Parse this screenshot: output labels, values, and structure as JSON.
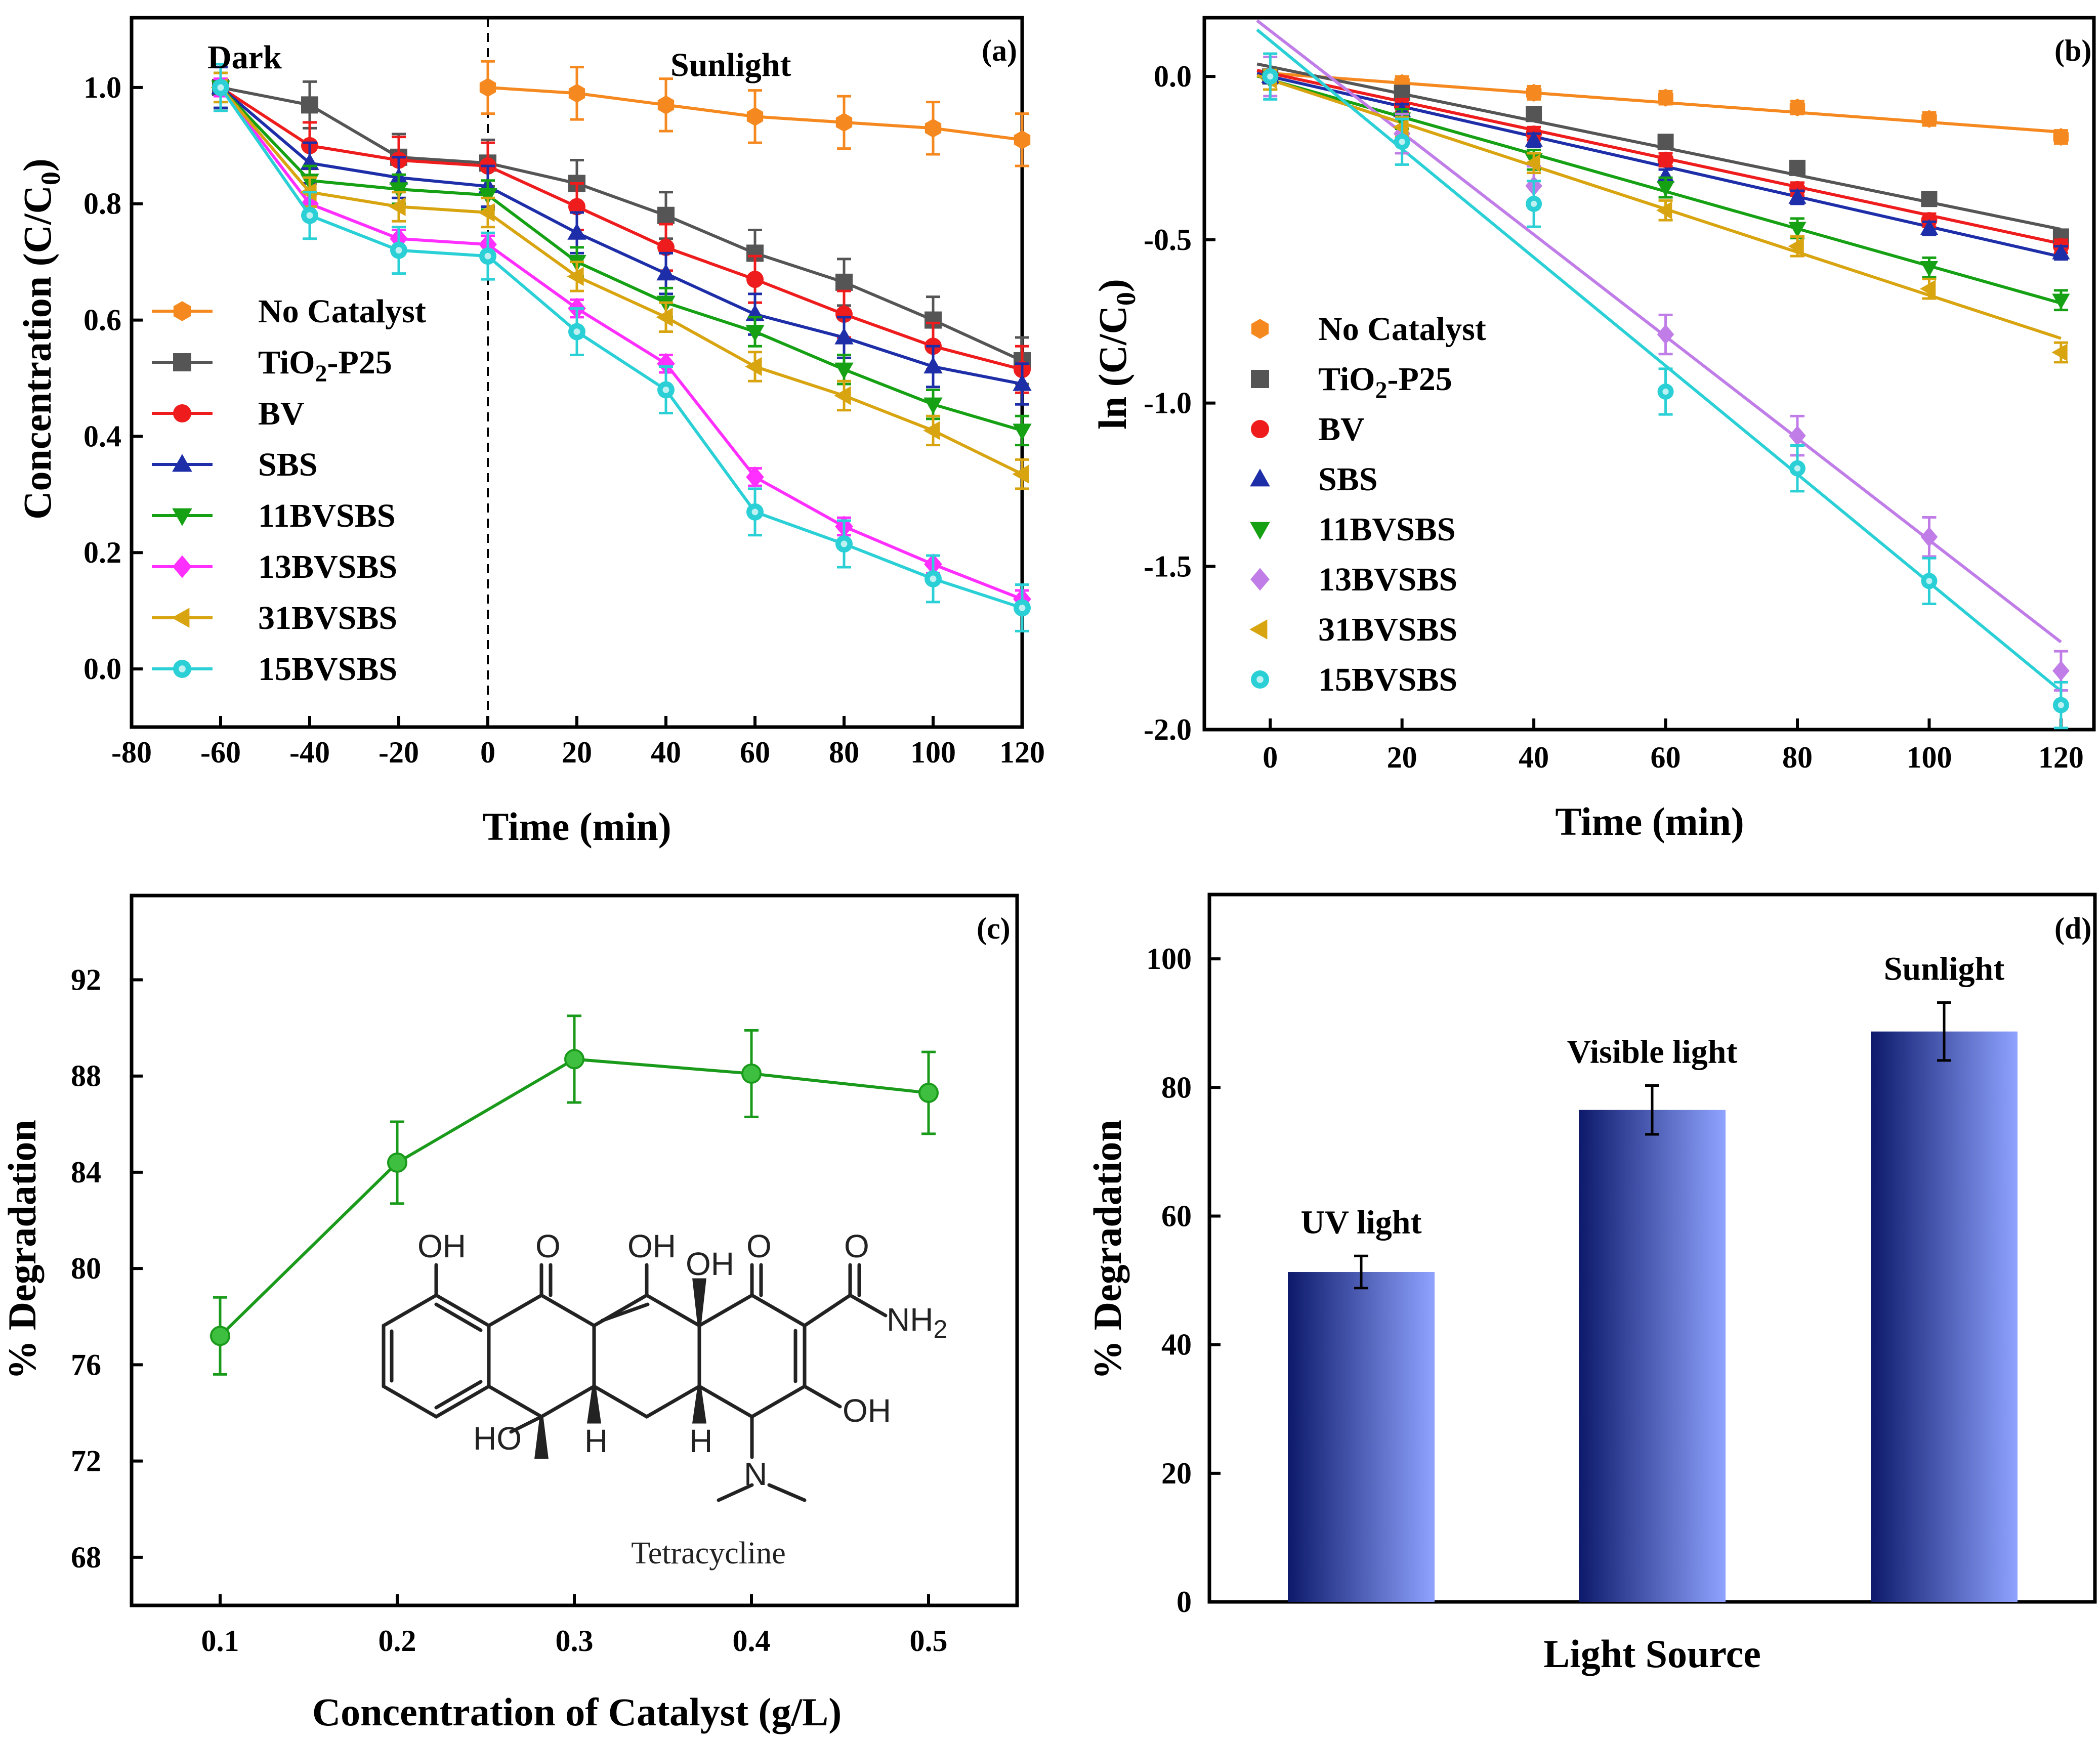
{
  "chart_data": [
    {
      "type": "line",
      "panel": "(a)",
      "xlabel": "Time (min)",
      "ylabel_main": "Concentration (C/C",
      "ylabel_sub": "0",
      "ylabel_end": ")",
      "annotations": {
        "dark": "Dark",
        "sunlight": "Sunlight"
      },
      "xlim": [
        -80,
        120
      ],
      "ylim": [
        -0.1,
        1.12
      ],
      "xticks": [
        -80,
        -60,
        -40,
        -20,
        0,
        20,
        40,
        60,
        80,
        100,
        120
      ],
      "yticks": [
        0.0,
        0.2,
        0.4,
        0.6,
        0.8,
        1.0
      ],
      "ytick_labels": [
        "0.0",
        "0.2",
        "0.4",
        "0.6",
        "0.8",
        "1.0"
      ],
      "divider_x": 0,
      "series": [
        {
          "name": "No Catalyst",
          "color": "#f5891f",
          "marker": "hexagon",
          "points": [
            [
              0,
              1.0
            ],
            [
              20,
              0.99
            ],
            [
              40,
              0.97
            ],
            [
              60,
              0.95
            ],
            [
              80,
              0.94
            ],
            [
              100,
              0.93
            ],
            [
              120,
              0.91
            ]
          ],
          "err": 0.045
        },
        {
          "name": "TiO2-P25",
          "label_main": "TiO",
          "label_sub": "2",
          "label_end": "-P25",
          "color": "#555555",
          "marker": "square",
          "points": [
            [
              -60,
              1.0
            ],
            [
              -40,
              0.97
            ],
            [
              -20,
              0.88
            ],
            [
              0,
              0.87
            ],
            [
              20,
              0.835
            ],
            [
              40,
              0.78
            ],
            [
              60,
              0.715
            ],
            [
              80,
              0.665
            ],
            [
              100,
              0.6
            ],
            [
              120,
              0.53
            ]
          ],
          "err": 0.04
        },
        {
          "name": "BV",
          "color": "#ee1c1c",
          "marker": "circle",
          "points": [
            [
              -60,
              1.0
            ],
            [
              -40,
              0.9
            ],
            [
              -20,
              0.875
            ],
            [
              0,
              0.865
            ],
            [
              20,
              0.795
            ],
            [
              40,
              0.725
            ],
            [
              60,
              0.67
            ],
            [
              80,
              0.61
            ],
            [
              100,
              0.555
            ],
            [
              120,
              0.515
            ]
          ],
          "err": 0.04
        },
        {
          "name": "SBS",
          "color": "#1e2ea8",
          "marker": "triangle-up",
          "points": [
            [
              -60,
              1.0
            ],
            [
              -40,
              0.87
            ],
            [
              -20,
              0.845
            ],
            [
              0,
              0.83
            ],
            [
              20,
              0.75
            ],
            [
              40,
              0.68
            ],
            [
              60,
              0.61
            ],
            [
              80,
              0.57
            ],
            [
              100,
              0.52
            ],
            [
              120,
              0.49
            ]
          ],
          "err": 0.035
        },
        {
          "name": "11BVSBS",
          "color": "#16a114",
          "marker": "triangle-down",
          "points": [
            [
              -60,
              1.0
            ],
            [
              -40,
              0.84
            ],
            [
              -20,
              0.825
            ],
            [
              0,
              0.815
            ],
            [
              20,
              0.7
            ],
            [
              40,
              0.63
            ],
            [
              60,
              0.58
            ],
            [
              80,
              0.515
            ],
            [
              100,
              0.455
            ],
            [
              120,
              0.41
            ]
          ],
          "err": 0.025
        },
        {
          "name": "13BVSBS",
          "color": "#ff2fff",
          "marker": "diamond",
          "points": [
            [
              -60,
              1.0
            ],
            [
              -40,
              0.8
            ],
            [
              -20,
              0.74
            ],
            [
              0,
              0.73
            ],
            [
              20,
              0.62
            ],
            [
              40,
              0.525
            ],
            [
              60,
              0.33
            ],
            [
              80,
              0.245
            ],
            [
              100,
              0.18
            ],
            [
              120,
              0.12
            ]
          ],
          "err": 0.015
        },
        {
          "name": "31BVSBS",
          "color": "#d8a410",
          "marker": "triangle-left",
          "points": [
            [
              -60,
              1.0
            ],
            [
              -40,
              0.82
            ],
            [
              -20,
              0.795
            ],
            [
              0,
              0.785
            ],
            [
              20,
              0.675
            ],
            [
              40,
              0.605
            ],
            [
              60,
              0.52
            ],
            [
              80,
              0.47
            ],
            [
              100,
              0.41
            ],
            [
              120,
              0.335
            ]
          ],
          "err": 0.025
        },
        {
          "name": "15BVSBS",
          "color": "#2ad0d6",
          "marker": "circle-dot",
          "points": [
            [
              -60,
              1.0
            ],
            [
              -40,
              0.78
            ],
            [
              -20,
              0.72
            ],
            [
              0,
              0.71
            ],
            [
              20,
              0.58
            ],
            [
              40,
              0.48
            ],
            [
              60,
              0.27
            ],
            [
              80,
              0.215
            ],
            [
              100,
              0.155
            ],
            [
              120,
              0.105
            ]
          ],
          "err": 0.04
        }
      ]
    },
    {
      "type": "scatter",
      "panel": "(b)",
      "xlabel": "Time (min)",
      "ylabel_main": "ln (C/C",
      "ylabel_sub": "0",
      "ylabel_end": ")",
      "xlim": [
        -10,
        125
      ],
      "ylim": [
        -2.0,
        0.18
      ],
      "xticks": [
        0,
        20,
        40,
        60,
        80,
        100,
        120
      ],
      "yticks": [
        0.0,
        -0.5,
        -1.0,
        -1.5,
        -2.0
      ],
      "ytick_labels": [
        "0.0",
        "-0.5",
        "-1.0",
        "-1.5",
        "-2.0"
      ],
      "series": [
        {
          "name": "No Catalyst",
          "color": "#f5891f",
          "marker": "hexagon",
          "x": [
            0,
            20,
            40,
            60,
            80,
            100,
            120
          ],
          "y": [
            0.0,
            -0.02,
            -0.05,
            -0.065,
            -0.095,
            -0.13,
            -0.185
          ],
          "fit": [
            0.01,
            -0.0015
          ],
          "err": 0.02
        },
        {
          "name": "TiO2-P25",
          "label_main": "TiO",
          "label_sub": "2",
          "label_end": "-P25",
          "color": "#555555",
          "marker": "square",
          "x": [
            0,
            20,
            40,
            60,
            80,
            100,
            120
          ],
          "y": [
            0.0,
            -0.05,
            -0.115,
            -0.2,
            -0.28,
            -0.375,
            -0.49
          ],
          "fit": [
            0.03,
            -0.00415
          ],
          "err": 0.02
        },
        {
          "name": "BV",
          "color": "#ee1c1c",
          "marker": "circle",
          "x": [
            0,
            20,
            40,
            60,
            80,
            100,
            120
          ],
          "y": [
            0.0,
            -0.09,
            -0.175,
            -0.255,
            -0.345,
            -0.44,
            -0.52
          ],
          "fit": [
            0.01,
            -0.00435
          ],
          "err": 0.02
        },
        {
          "name": "SBS",
          "color": "#1e2ea8",
          "marker": "triangle-up",
          "x": [
            0,
            20,
            40,
            60,
            80,
            100,
            120
          ],
          "y": [
            0.0,
            -0.105,
            -0.195,
            -0.305,
            -0.37,
            -0.465,
            -0.54
          ],
          "fit": [
            0.0,
            -0.0046
          ],
          "err": 0.02
        },
        {
          "name": "11BVSBS",
          "color": "#16a114",
          "marker": "triangle-down",
          "x": [
            0,
            20,
            40,
            60,
            80,
            100,
            120
          ],
          "y": [
            -0.01,
            -0.13,
            -0.255,
            -0.34,
            -0.465,
            -0.585,
            -0.685
          ],
          "fit": [
            -0.01,
            -0.0057
          ],
          "err": 0.03
        },
        {
          "name": "13BVSBS",
          "color": "#c07de8",
          "marker": "diamond",
          "x": [
            0,
            20,
            40,
            60,
            80,
            100,
            120
          ],
          "y": [
            0.0,
            -0.175,
            -0.335,
            -0.79,
            -1.1,
            -1.41,
            -1.82
          ],
          "fit": [
            0.14,
            -0.0156
          ],
          "err": 0.06
        },
        {
          "name": "31BVSBS",
          "color": "#d8a410",
          "marker": "triangle-left",
          "x": [
            0,
            20,
            40,
            60,
            80,
            100,
            120
          ],
          "y": [
            -0.01,
            -0.155,
            -0.265,
            -0.41,
            -0.52,
            -0.65,
            -0.845
          ],
          "fit": [
            -0.01,
            -0.0066
          ],
          "err": 0.03
        },
        {
          "name": "15BVSBS",
          "color": "#2ad0d6",
          "marker": "circle-dot",
          "x": [
            0,
            20,
            40,
            60,
            80,
            100,
            120
          ],
          "y": [
            0.0,
            -0.2,
            -0.39,
            -0.965,
            -1.2,
            -1.545,
            -1.925
          ],
          "fit": [
            0.11,
            -0.0166
          ],
          "err": 0.07
        }
      ]
    },
    {
      "type": "line",
      "panel": "(c)",
      "xlabel": "Concentration of Catalyst (g/L)",
      "ylabel": "% Degradation",
      "color": "#1a9a1a",
      "xlim": [
        0.05,
        0.55
      ],
      "ylim": [
        66,
        95.5
      ],
      "xticks": [
        0.1,
        0.2,
        0.3,
        0.4,
        0.5
      ],
      "xtick_labels": [
        "0.1",
        "0.2",
        "0.3",
        "0.4",
        "0.5"
      ],
      "yticks": [
        68,
        72,
        76,
        80,
        84,
        88,
        92
      ],
      "x": [
        0.1,
        0.2,
        0.3,
        0.4,
        0.5
      ],
      "y": [
        77.2,
        84.4,
        88.7,
        88.1,
        87.3
      ],
      "err": [
        1.6,
        1.7,
        1.8,
        1.8,
        1.7
      ],
      "molecule": {
        "name": "Tetracycline",
        "oh1": "OH",
        "oh2": "OH",
        "oh3": "OH",
        "oh4": "OH",
        "oh5": "HO",
        "nh2": "NH",
        "nh2_sub": "2",
        "n": "N",
        "h1": "H",
        "h2": "H",
        "o1": "O",
        "o2": "O",
        "o3": "O"
      }
    },
    {
      "type": "bar",
      "panel": "(d)",
      "xlabel": "Light Source",
      "ylabel": "% Degradation",
      "ylim": [
        0,
        110
      ],
      "yticks": [
        0,
        20,
        40,
        60,
        80,
        100
      ],
      "categories": [
        "UV light",
        "Visible light",
        "Sunlight"
      ],
      "values": [
        51.3,
        76.5,
        88.7
      ],
      "err": [
        2.5,
        3.8,
        4.5
      ],
      "gradient": [
        "#0d1a6b",
        "#8fa3ff"
      ]
    }
  ]
}
